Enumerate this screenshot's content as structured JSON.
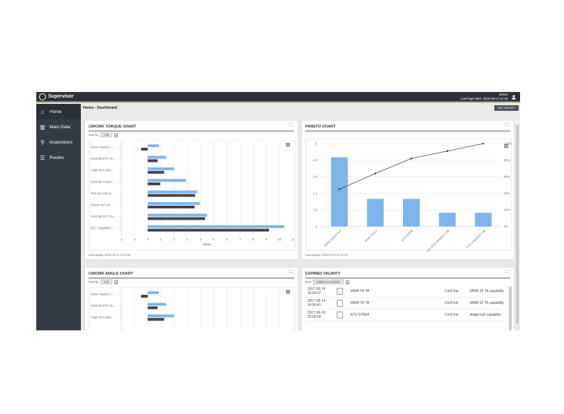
{
  "app": {
    "title": "Supervisor",
    "user": "admin",
    "last_login": "Last login date: 2018-09-13 10:15",
    "breadcrumb": "Home - Dashboard",
    "add_widget": "ADD WIDGET"
  },
  "sidebar": {
    "items": [
      {
        "label": "Home",
        "icon": "home-icon",
        "active": true
      },
      {
        "label": "Main Data",
        "icon": "books-icon"
      },
      {
        "label": "Inspections",
        "icon": "search-gear-icon"
      },
      {
        "label": "Routes",
        "icon": "checklist-icon"
      }
    ]
  },
  "colors": {
    "cm": "#7cb5ec",
    "cmk": "#434348",
    "pareto_bar": "#7cb5ec",
    "header": "#2b323a",
    "sidebar": "#333c44"
  },
  "widgets": {
    "torque": {
      "title": "CM/CMK TORQUE CHART",
      "sort_label": "Sort by",
      "sort_value": "CM",
      "last_update": "Last update: 2018-09-14 12:24:52"
    },
    "pareto": {
      "title": "PARETO CHART",
      "last_update": "Last update: 2018-09-14 12:20:23"
    },
    "angle": {
      "title": "CM/CMK ANGLE CHART",
      "sort_label": "Sort by",
      "sort_value": "CM"
    },
    "expired": {
      "title": "EXPIRED VALIDITY",
      "sort_label": "Sort",
      "sort_value": "Oldest to newest",
      "rows": [
        {
          "date": "2017-06-14",
          "time": "15:00:37",
          "tool": "MWR 50 TA",
          "type": "Cm/Cmk",
          "name": "MWR 25 TA capability"
        },
        {
          "date": "2017-06-14",
          "time": "14:56:41",
          "tool": "MWR 50 TA",
          "type": "Cm/Cmk",
          "name": "MWR 50 TA capability"
        },
        {
          "date": "2017-06-19",
          "time": "20:05:50",
          "tool": "ETV STB34",
          "type": "Cm/Cmk",
          "name": "Angle tool capability"
        }
      ]
    }
  },
  "chart_data": [
    {
      "type": "bar",
      "orientation": "horizontal",
      "categories": [
        "Green Inspect 1 ...",
        "Cm/Cmk ETX Va...",
        "Angle tool capa...",
        "Cm/Cmk Tensor...",
        "Test very soft jo...",
        "Tensor tool con...",
        "Cm/CMk SCF Va...",
        "QST Capability (..."
      ],
      "series": [
        {
          "values": [
            0.85,
            1.4,
            2.0,
            2.9,
            3.75,
            3.95,
            4.5,
            10.35
          ]
        },
        {
          "values": [
            -0.5,
            0.75,
            1.25,
            0.95,
            3.6,
            3.55,
            4.35,
            9.2
          ]
        }
      ],
      "xlabel": "Values",
      "xlim": [
        -2,
        11
      ],
      "xticks": [
        -2,
        -1,
        0,
        1,
        2,
        3,
        4,
        5,
        6,
        7,
        8,
        9,
        10,
        11
      ],
      "grid": true
    },
    {
      "type": "bar+line",
      "categories": [
        "Demo station tool",
        "Green Tool 1",
        "ETV STB34",
        "Monitor STB Validation Lab",
        "ETX Validation Lab"
      ],
      "values": [
        5,
        2,
        2,
        1,
        1
      ],
      "cumulative_percent": [
        45,
        64,
        82,
        91,
        100
      ],
      "ylim": [
        0,
        6
      ],
      "yticks": [
        0,
        1.2,
        2.4,
        3.6,
        4.8,
        6
      ],
      "y2ticks": [
        "0%",
        "20%",
        "40%",
        "60%",
        "80%",
        "100%"
      ],
      "grid": true
    },
    {
      "type": "bar",
      "orientation": "horizontal",
      "categories": [
        "Green Inspect 1 ...",
        "Cm/Cmk ETX Va...",
        "Angle tool capa..."
      ],
      "series": [
        {
          "values": [
            0.85,
            1.4,
            2.0
          ]
        },
        {
          "values": [
            -0.5,
            0.75,
            1.25
          ]
        }
      ],
      "xlim": [
        -2,
        11
      ],
      "grid": true
    }
  ]
}
